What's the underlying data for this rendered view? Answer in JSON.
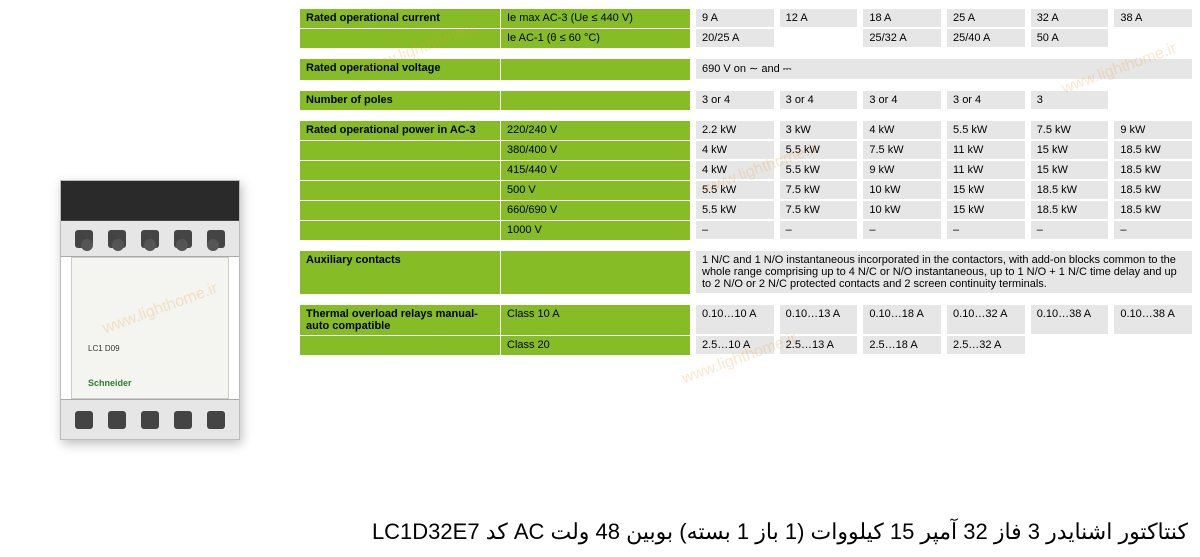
{
  "colors": {
    "header_green": "#86bc25",
    "cell_gray": "#e6e6e6",
    "page_bg": "#ffffff",
    "text": "#000000"
  },
  "device": {
    "label": "LC1 D09",
    "brand": "Schneider"
  },
  "product_caption": "کنتاکتور اشنایدر 3 فاز 32 آمپر 15 کیلووات (1 باز 1 بسته) بوبین 48 ولت AC کد LC1D32E7",
  "watermark_text": "www.lighthome.ir",
  "columns_count": 6,
  "table": {
    "sections": [
      {
        "id": "rated_current",
        "rows": [
          {
            "main": "Rated operational current",
            "sub": "Ie max AC-3 (Ue ≤ 440 V)",
            "cells": [
              "9 A",
              "12 A",
              "18 A",
              "25 A",
              "32 A",
              "38 A"
            ]
          },
          {
            "main": "",
            "sub": "Ie AC-1 (θ ≤ 60 °C)",
            "cells": [
              "20/25 A",
              "",
              "25/32 A",
              "25/40 A",
              "50 A",
              ""
            ]
          }
        ]
      },
      {
        "id": "rated_voltage",
        "rows": [
          {
            "main": "Rated operational voltage",
            "sub": "",
            "merged_cell": "690 V on ∼ and ⎓"
          }
        ]
      },
      {
        "id": "poles",
        "rows": [
          {
            "main": "Number of poles",
            "sub": "",
            "cells": [
              "3 or 4",
              "3 or 4",
              "3 or 4",
              "3 or 4",
              "3",
              ""
            ]
          }
        ]
      },
      {
        "id": "power",
        "rows": [
          {
            "main": "Rated operational power in AC-3",
            "sub": "220/240 V",
            "cells": [
              "2.2 kW",
              "3 kW",
              "4 kW",
              "5.5 kW",
              "7.5 kW",
              "9 kW"
            ]
          },
          {
            "main": "",
            "sub": "380/400 V",
            "cells": [
              "4 kW",
              "5.5 kW",
              "7.5 kW",
              "11 kW",
              "15 kW",
              "18.5 kW"
            ]
          },
          {
            "main": "",
            "sub": "415/440 V",
            "cells": [
              "4 kW",
              "5.5 kW",
              "9 kW",
              "11 kW",
              "15 kW",
              "18.5 kW"
            ]
          },
          {
            "main": "",
            "sub": "500 V",
            "cells": [
              "5.5 kW",
              "7.5 kW",
              "10 kW",
              "15 kW",
              "18.5 kW",
              "18.5 kW"
            ]
          },
          {
            "main": "",
            "sub": "660/690 V",
            "cells": [
              "5.5 kW",
              "7.5 kW",
              "10 kW",
              "15 kW",
              "18.5 kW",
              "18.5 kW"
            ]
          },
          {
            "main": "",
            "sub": "1000 V",
            "cells": [
              "–",
              "–",
              "–",
              "–",
              "–",
              "–"
            ]
          }
        ]
      },
      {
        "id": "aux",
        "rows": [
          {
            "main": "Auxiliary contacts",
            "sub": "",
            "merged_cell": "1 N/C and 1 N/O instantaneous incorporated in the contactors, with add-on blocks common to the whole range comprising up to 4 N/C or N/O instantaneous, up to 1 N/O + 1 N/C time delay and up to 2 N/O or 2 N/C protected contacts and 2 screen continuity terminals."
          }
        ]
      },
      {
        "id": "thermal",
        "rows": [
          {
            "main": "Thermal overload relays manual-auto compatible",
            "sub": "Class 10 A",
            "cells": [
              "0.10…10 A",
              "0.10…13 A",
              "0.10…18 A",
              "0.10…32 A",
              "0.10…38 A",
              "0.10…38 A"
            ]
          },
          {
            "main": "",
            "sub": "Class 20",
            "cells": [
              "2.5…10 A",
              "2.5…13 A",
              "2.5…18 A",
              "2.5…32 A",
              "",
              ""
            ]
          }
        ]
      }
    ]
  }
}
